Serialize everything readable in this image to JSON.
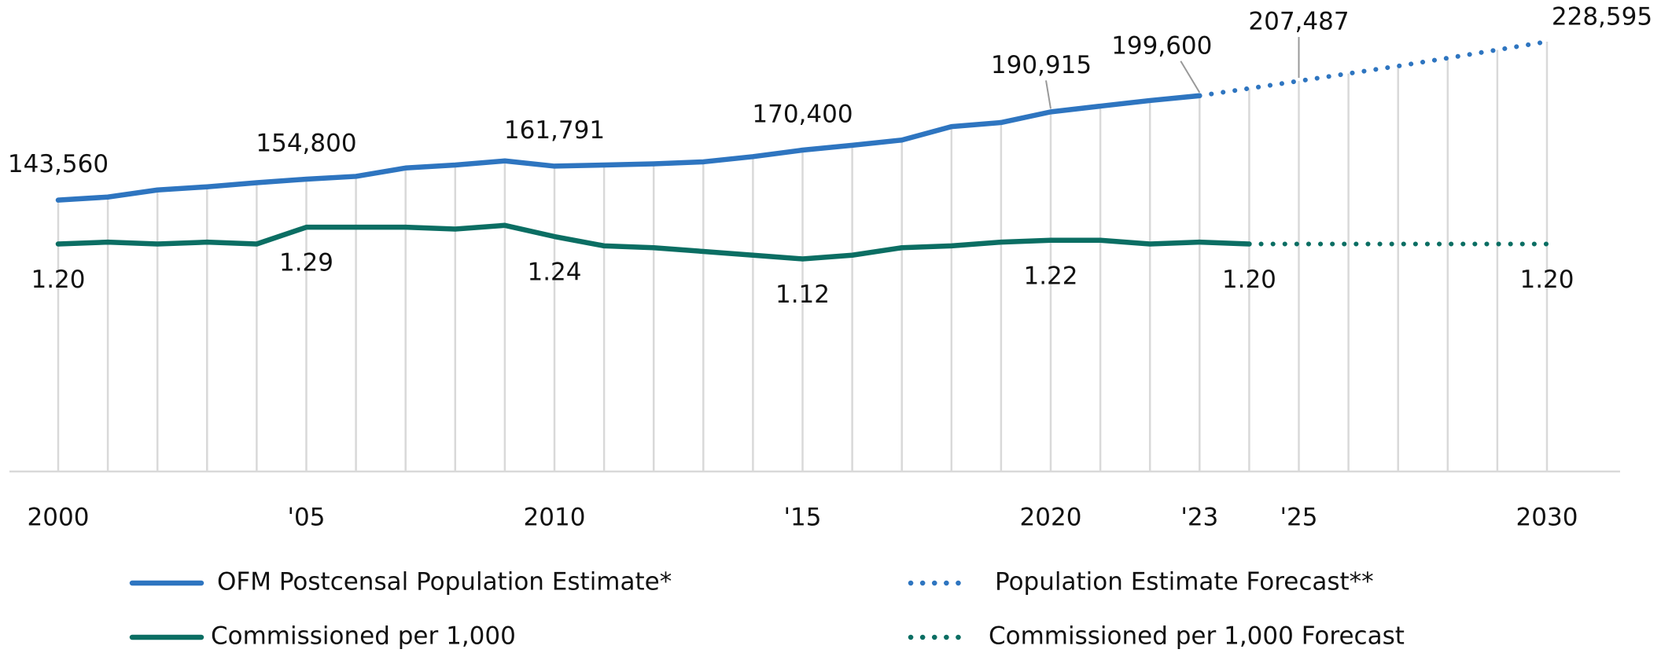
{
  "chart_data": {
    "type": "line",
    "xlim": [
      2000,
      2030
    ],
    "xticks": [
      2000,
      {
        "value": 2005,
        "label": "'05"
      },
      2010,
      {
        "value": 2015,
        "label": "'15"
      },
      2020,
      {
        "value": 2023,
        "label": "'23"
      },
      {
        "value": 2025,
        "label": "'25"
      },
      2030
    ],
    "ylim": [
      0,
      240000
    ],
    "y2lim": [
      0,
      2.4
    ],
    "grid": true,
    "series": [
      {
        "name": "OFM Postcensal Population Estimate*",
        "color": "#2e75c0",
        "style": "solid",
        "x": [
          2000,
          2001,
          2002,
          2003,
          2004,
          2005,
          2006,
          2007,
          2008,
          2009,
          2010,
          2011,
          2012,
          2013,
          2014,
          2015,
          2016,
          2017,
          2018,
          2019,
          2020,
          2021,
          2022,
          2023
        ],
        "values": [
          143560,
          145200,
          149000,
          150700,
          152900,
          154800,
          156300,
          160800,
          162400,
          164600,
          161791,
          162400,
          163000,
          164100,
          166900,
          170400,
          173000,
          175800,
          183000,
          185200,
          190915,
          194000,
          197000,
          199600
        ],
        "value_labels": [
          "143,560",
          null,
          null,
          null,
          null,
          "154,800",
          null,
          null,
          null,
          null,
          "161,791",
          null,
          null,
          null,
          null,
          "170,400",
          null,
          null,
          null,
          null,
          "190,915",
          null,
          null,
          "199,600"
        ]
      },
      {
        "name": "Population Estimate Forecast**",
        "color": "#2e75c0",
        "style": "dotted",
        "x": [
          2023,
          2024,
          2025,
          2026,
          2027,
          2028,
          2029,
          2030
        ],
        "values": [
          199600,
          203500,
          207487,
          211500,
          215500,
          219800,
          224200,
          228595
        ],
        "value_labels": [
          null,
          null,
          "207,487",
          null,
          null,
          null,
          null,
          "228,595"
        ]
      },
      {
        "name": "Commissioned per 1,000",
        "color": "#0b6e63",
        "style": "solid",
        "axis": "y2",
        "x": [
          2000,
          2001,
          2002,
          2003,
          2004,
          2005,
          2006,
          2007,
          2008,
          2009,
          2010,
          2011,
          2012,
          2013,
          2014,
          2015,
          2016,
          2017,
          2018,
          2019,
          2020,
          2021,
          2022,
          2023,
          2024
        ],
        "values": [
          1.2,
          1.21,
          1.2,
          1.21,
          1.2,
          1.29,
          1.29,
          1.29,
          1.28,
          1.3,
          1.24,
          1.19,
          1.18,
          1.16,
          1.14,
          1.12,
          1.14,
          1.18,
          1.19,
          1.21,
          1.22,
          1.22,
          1.2,
          1.21,
          1.2
        ],
        "value_labels": [
          "1.20",
          null,
          null,
          null,
          null,
          "1.29",
          null,
          null,
          null,
          null,
          "1.24",
          null,
          null,
          null,
          null,
          "1.12",
          null,
          null,
          null,
          null,
          "1.22",
          null,
          null,
          null,
          "1.20"
        ]
      },
      {
        "name": "Commissioned per 1,000 Forecast",
        "color": "#0b6e63",
        "style": "dotted",
        "axis": "y2",
        "x": [
          2024,
          2025,
          2026,
          2027,
          2028,
          2029,
          2030
        ],
        "values": [
          1.2,
          1.2,
          1.2,
          1.2,
          1.2,
          1.2,
          1.2
        ],
        "value_labels": [
          null,
          null,
          null,
          null,
          null,
          null,
          "1.20"
        ]
      }
    ]
  }
}
